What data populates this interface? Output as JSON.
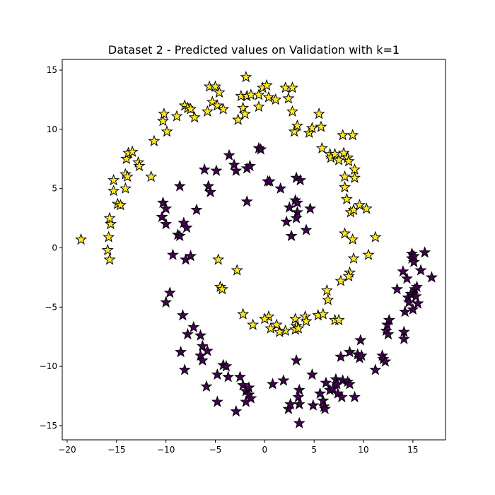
{
  "chart_data": {
    "type": "scatter",
    "title": "Dataset 2 - Predicted values on Validation with k=1",
    "xlabel": "",
    "ylabel": "",
    "xlim": [
      -20.5,
      18.3
    ],
    "ylim": [
      -16.2,
      15.9
    ],
    "x_ticks": [
      -20,
      -15,
      -10,
      -5,
      0,
      5,
      10,
      15
    ],
    "y_ticks": [
      -15,
      -10,
      -5,
      0,
      5,
      10,
      15
    ],
    "x_tick_labels": [
      "−20",
      "−15",
      "−10",
      "−5",
      "0",
      "5",
      "10",
      "15"
    ],
    "y_tick_labels": [
      "−15",
      "−10",
      "−5",
      "0",
      "5",
      "10",
      "15"
    ],
    "grid": false,
    "legend": "none",
    "marker": "star",
    "colors": {
      "class_0": "#440154",
      "class_1": "#fde725",
      "edge": "#000000"
    },
    "series": [
      {
        "values": [
          [
            -18.6,
            0.7
          ],
          [
            -15.9,
            -0.2
          ],
          [
            -15.7,
            -1.0
          ],
          [
            -15.8,
            0.9
          ],
          [
            -15.6,
            2.0
          ],
          [
            -15.7,
            2.5
          ],
          [
            -15.3,
            4.8
          ],
          [
            -15.3,
            5.7
          ],
          [
            -14.9,
            3.7
          ],
          [
            -14.6,
            3.6
          ],
          [
            -14.1,
            5.0
          ],
          [
            -14.1,
            6.2
          ],
          [
            -13.9,
            6.0
          ],
          [
            -14.0,
            7.5
          ],
          [
            -13.8,
            8.0
          ],
          [
            -13.4,
            8.1
          ],
          [
            -12.8,
            7.2
          ],
          [
            -12.7,
            6.9
          ],
          [
            -11.5,
            6.0
          ],
          [
            -11.2,
            9.0
          ],
          [
            -10.3,
            10.7
          ],
          [
            -10.2,
            11.3
          ],
          [
            -9.9,
            9.8
          ],
          [
            -8.9,
            11.1
          ],
          [
            -8.1,
            12.0
          ],
          [
            -7.8,
            11.8
          ],
          [
            -7.5,
            11.7
          ],
          [
            -7.1,
            11.0
          ],
          [
            -5.8,
            11.5
          ],
          [
            -5.6,
            13.6
          ],
          [
            -5.3,
            12.3
          ],
          [
            -5.0,
            13.6
          ],
          [
            -4.8,
            12.0
          ],
          [
            -4.6,
            13.1
          ],
          [
            -4.2,
            11.7
          ],
          [
            -2.7,
            10.8
          ],
          [
            -2.4,
            12.8
          ],
          [
            -2.2,
            11.8
          ],
          [
            -2.0,
            11.3
          ],
          [
            -1.9,
            14.4
          ],
          [
            -1.8,
            12.8
          ],
          [
            -1.4,
            12.9
          ],
          [
            -0.6,
            12.9
          ],
          [
            -0.6,
            11.9
          ],
          [
            -0.2,
            13.5
          ],
          [
            0.2,
            13.7
          ],
          [
            0.4,
            12.7
          ],
          [
            1.1,
            12.5
          ],
          [
            2.1,
            13.5
          ],
          [
            2.4,
            12.6
          ],
          [
            2.8,
            13.5
          ],
          [
            2.8,
            11.5
          ],
          [
            3.0,
            9.8
          ],
          [
            3.3,
            10.3
          ],
          [
            4.5,
            9.7
          ],
          [
            4.8,
            10.1
          ],
          [
            5.5,
            11.3
          ],
          [
            5.7,
            10.2
          ],
          [
            5.8,
            8.4
          ],
          [
            6.6,
            7.9
          ],
          [
            6.7,
            7.6
          ],
          [
            7.1,
            7.9
          ],
          [
            7.5,
            7.4
          ],
          [
            7.9,
            9.5
          ],
          [
            8.0,
            8.0
          ],
          [
            8.1,
            6.0
          ],
          [
            8.4,
            7.6
          ],
          [
            8.5,
            7.3
          ],
          [
            8.9,
            9.5
          ],
          [
            9.1,
            6.6
          ],
          [
            9.1,
            5.9
          ],
          [
            8.1,
            5.1
          ],
          [
            8.3,
            4.1
          ],
          [
            8.7,
            3.0
          ],
          [
            9.0,
            3.2
          ],
          [
            9.6,
            3.6
          ],
          [
            10.3,
            3.3
          ],
          [
            11.2,
            0.9
          ],
          [
            8.1,
            1.2
          ],
          [
            8.9,
            0.7
          ],
          [
            9.0,
            -0.9
          ],
          [
            10.5,
            -0.6
          ],
          [
            8.6,
            -2.1
          ],
          [
            8.5,
            -2.4
          ],
          [
            7.7,
            -2.8
          ],
          [
            6.3,
            -3.6
          ],
          [
            6.4,
            -4.4
          ],
          [
            5.4,
            -5.7
          ],
          [
            5.9,
            -5.6
          ],
          [
            7.1,
            -6.1
          ],
          [
            7.5,
            -6.1
          ],
          [
            4.1,
            -5.8
          ],
          [
            4.2,
            -6.2
          ],
          [
            3.1,
            -6.0
          ],
          [
            3.2,
            -6.6
          ],
          [
            3.1,
            -6.9
          ],
          [
            3.4,
            -6.8
          ],
          [
            2.1,
            -7.0
          ],
          [
            1.5,
            -7.1
          ],
          [
            1.2,
            -6.5
          ],
          [
            0.6,
            -6.8
          ],
          [
            0.4,
            -5.8
          ],
          [
            0.0,
            -6.0
          ],
          [
            -1.2,
            -6.5
          ],
          [
            -2.2,
            -5.6
          ],
          [
            -2.8,
            -1.9
          ],
          [
            -4.7,
            -1.0
          ],
          [
            -4.5,
            -3.3
          ],
          [
            -4.3,
            -3.5
          ]
        ]
      },
      {
        "values": [
          [
            -10.4,
            2.6
          ],
          [
            -10.3,
            3.8
          ],
          [
            -10.0,
            3.3
          ],
          [
            -10.0,
            2.0
          ],
          [
            -9.6,
            -3.8
          ],
          [
            -10.0,
            -4.6
          ],
          [
            -9.3,
            -0.6
          ],
          [
            -8.8,
            1.1
          ],
          [
            -8.6,
            1.0
          ],
          [
            -8.6,
            5.2
          ],
          [
            -8.2,
            2.1
          ],
          [
            -7.9,
            1.7
          ],
          [
            -8.0,
            -1.0
          ],
          [
            -7.5,
            -0.7
          ],
          [
            -6.9,
            3.2
          ],
          [
            -6.1,
            6.6
          ],
          [
            -5.7,
            5.2
          ],
          [
            -5.5,
            4.7
          ],
          [
            -4.9,
            6.5
          ],
          [
            -3.6,
            7.8
          ],
          [
            -3.1,
            7.0
          ],
          [
            -2.9,
            6.5
          ],
          [
            -1.8,
            6.7
          ],
          [
            -1.5,
            6.9
          ],
          [
            -0.6,
            8.4
          ],
          [
            -0.4,
            8.3
          ],
          [
            0.3,
            5.6
          ],
          [
            0.5,
            5.6
          ],
          [
            1.6,
            5.0
          ],
          [
            2.2,
            2.2
          ],
          [
            2.5,
            3.4
          ],
          [
            2.7,
            1.0
          ],
          [
            3.1,
            4.0
          ],
          [
            3.2,
            5.9
          ],
          [
            3.3,
            3.8
          ],
          [
            3.6,
            5.7
          ],
          [
            3.3,
            3.0
          ],
          [
            3.2,
            2.5
          ],
          [
            4.2,
            1.5
          ],
          [
            4.6,
            3.3
          ],
          [
            -1.8,
            3.9
          ],
          [
            -8.3,
            -5.7
          ],
          [
            -7.8,
            -7.3
          ],
          [
            -7.2,
            -6.7
          ],
          [
            -6.5,
            -7.4
          ],
          [
            -6.3,
            -8.3
          ],
          [
            -5.8,
            -8.7
          ],
          [
            -6.5,
            -9.1
          ],
          [
            -6.3,
            -9.5
          ],
          [
            -8.5,
            -8.8
          ],
          [
            -8.1,
            -10.3
          ],
          [
            -5.9,
            -11.7
          ],
          [
            -4.8,
            -10.7
          ],
          [
            -4.8,
            -13.0
          ],
          [
            -4.2,
            -9.9
          ],
          [
            -3.9,
            -10.0
          ],
          [
            -3.7,
            -10.9
          ],
          [
            -2.5,
            -10.9
          ],
          [
            -2.9,
            -13.8
          ],
          [
            -2.2,
            -11.6
          ],
          [
            -1.9,
            -12.1
          ],
          [
            -1.6,
            -11.8
          ],
          [
            -1.6,
            -12.4
          ],
          [
            -1.4,
            -12.7
          ],
          [
            -1.9,
            -13.0
          ],
          [
            0.8,
            -11.5
          ],
          [
            1.9,
            -11.2
          ],
          [
            2.4,
            -13.6
          ],
          [
            2.6,
            -13.2
          ],
          [
            3.2,
            -9.5
          ],
          [
            3.4,
            -12.6
          ],
          [
            3.5,
            -13.2
          ],
          [
            3.5,
            -14.8
          ],
          [
            3.5,
            -12.0
          ],
          [
            4.8,
            -10.7
          ],
          [
            4.9,
            -13.3
          ],
          [
            5.6,
            -12.3
          ],
          [
            5.9,
            -12.9
          ],
          [
            6.0,
            -13.4
          ],
          [
            6.1,
            -13.6
          ],
          [
            6.2,
            -11.4
          ],
          [
            6.6,
            -12.0
          ],
          [
            6.9,
            -11.9
          ],
          [
            7.2,
            -11.1
          ],
          [
            7.3,
            -11.5
          ],
          [
            7.4,
            -12.3
          ],
          [
            7.8,
            -12.6
          ],
          [
            7.7,
            -9.2
          ],
          [
            7.9,
            -11.2
          ],
          [
            8.4,
            -11.3
          ],
          [
            8.6,
            -11.5
          ],
          [
            8.6,
            -8.8
          ],
          [
            9.1,
            -12.6
          ],
          [
            9.4,
            -9.0
          ],
          [
            9.6,
            -9.3
          ],
          [
            9.8,
            -9.1
          ],
          [
            9.7,
            -7.8
          ],
          [
            11.2,
            -10.3
          ],
          [
            11.9,
            -9.1
          ],
          [
            12.0,
            -9.4
          ],
          [
            12.2,
            -9.6
          ],
          [
            12.3,
            -7.0
          ],
          [
            12.4,
            -6.5
          ],
          [
            12.5,
            -7.3
          ],
          [
            12.6,
            -6.1
          ],
          [
            13.4,
            -3.5
          ],
          [
            14.0,
            -2.0
          ],
          [
            14.1,
            -7.1
          ],
          [
            14.1,
            -7.7
          ],
          [
            14.2,
            -5.4
          ],
          [
            14.4,
            -2.6
          ],
          [
            14.5,
            -4.2
          ],
          [
            14.6,
            -4.6
          ],
          [
            14.8,
            -3.9
          ],
          [
            14.9,
            -0.5
          ],
          [
            14.9,
            -0.9
          ],
          [
            15.0,
            -5.2
          ],
          [
            15.1,
            -0.7
          ],
          [
            15.1,
            -1.2
          ],
          [
            15.2,
            -3.5
          ],
          [
            15.3,
            -4.1
          ],
          [
            15.4,
            -3.3
          ],
          [
            15.5,
            -4.7
          ],
          [
            15.8,
            -1.9
          ],
          [
            16.2,
            -0.4
          ],
          [
            16.9,
            -2.5
          ]
        ]
      }
    ]
  }
}
